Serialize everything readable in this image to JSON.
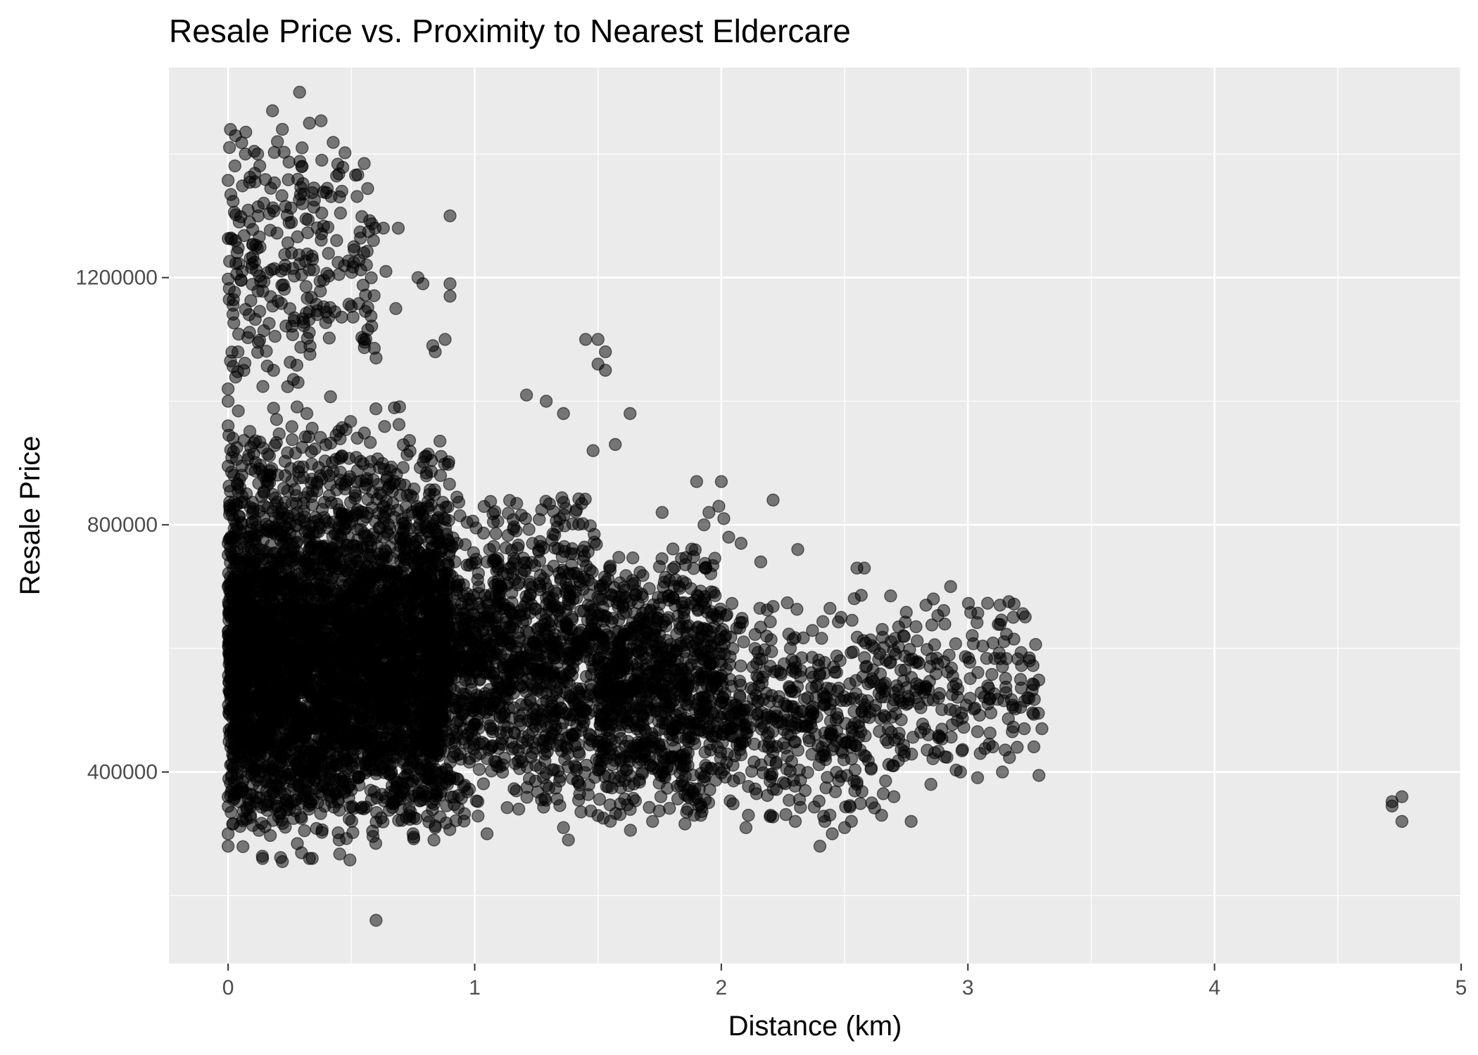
{
  "chart_data": {
    "type": "scatter",
    "title": "Resale Price vs. Proximity to Nearest Eldercare",
    "xlabel": "Distance (km)",
    "ylabel": "Resale Price",
    "xlim": [
      -0.24,
      5.0
    ],
    "ylim": [
      90000,
      1540000
    ],
    "x_ticks": [
      0,
      1,
      2,
      3,
      4,
      5
    ],
    "x_tick_labels": [
      "0",
      "1",
      "2",
      "3",
      "4",
      "5"
    ],
    "x_minor_ticks": [
      0.5,
      1.5,
      2.5,
      3.5,
      4.5
    ],
    "y_ticks": [
      400000,
      800000,
      1200000
    ],
    "y_tick_labels": [
      "400000",
      "800000",
      "1200000"
    ],
    "y_minor_ticks": [
      200000,
      600000,
      1000000,
      1400000
    ],
    "grid": true,
    "legend": "none",
    "colors": {
      "panel_background": "#ebebeb",
      "grid": "#ffffff",
      "point": "#000000",
      "tick_text": "#4d4d4d"
    },
    "point_alpha": 0.5,
    "density_regions": [
      {
        "x": [
          0.0,
          0.9
        ],
        "y": [
          255000,
          1000000
        ],
        "count": 2400
      },
      {
        "x": [
          0.0,
          0.85
        ],
        "y": [
          300000,
          800000
        ],
        "count": 1800
      },
      {
        "x": [
          0.0,
          0.6
        ],
        "y": [
          1000000,
          1480000
        ],
        "count": 260
      },
      {
        "x": [
          0.8,
          1.5
        ],
        "y": [
          300000,
          870000
        ],
        "count": 1300
      },
      {
        "x": [
          1.5,
          2.0
        ],
        "y": [
          300000,
          780000
        ],
        "count": 900
      },
      {
        "x": [
          2.0,
          2.7
        ],
        "y": [
          310000,
          690000
        ],
        "count": 450
      },
      {
        "x": [
          2.7,
          3.3
        ],
        "y": [
          380000,
          690000
        ],
        "count": 200
      }
    ],
    "points": [
      {
        "x": 0.29,
        "y": 1500000
      },
      {
        "x": 0.18,
        "y": 1470000
      },
      {
        "x": 0.22,
        "y": 1440000
      },
      {
        "x": 0.33,
        "y": 1450000
      },
      {
        "x": 0.2,
        "y": 1420000
      },
      {
        "x": 0.3,
        "y": 1410000
      },
      {
        "x": 0.07,
        "y": 1400000
      },
      {
        "x": 0.12,
        "y": 1400000
      },
      {
        "x": 0.38,
        "y": 1390000
      },
      {
        "x": 0.3,
        "y": 1380000
      },
      {
        "x": 0.9,
        "y": 1300000
      },
      {
        "x": 0.63,
        "y": 1280000
      },
      {
        "x": 0.69,
        "y": 1280000
      },
      {
        "x": 0.44,
        "y": 1260000
      },
      {
        "x": 0.51,
        "y": 1250000
      },
      {
        "x": 0.55,
        "y": 1240000
      },
      {
        "x": 0.64,
        "y": 1210000
      },
      {
        "x": 0.77,
        "y": 1200000
      },
      {
        "x": 0.9,
        "y": 1190000
      },
      {
        "x": 0.9,
        "y": 1170000
      },
      {
        "x": 0.68,
        "y": 1150000
      },
      {
        "x": 0.79,
        "y": 1190000
      },
      {
        "x": 0.88,
        "y": 1100000
      },
      {
        "x": 1.45,
        "y": 1100000
      },
      {
        "x": 1.5,
        "y": 1100000
      },
      {
        "x": 1.53,
        "y": 1080000
      },
      {
        "x": 1.5,
        "y": 1060000
      },
      {
        "x": 1.53,
        "y": 1050000
      },
      {
        "x": 0.83,
        "y": 1090000
      },
      {
        "x": 0.84,
        "y": 1080000
      },
      {
        "x": 1.21,
        "y": 1010000
      },
      {
        "x": 1.29,
        "y": 1000000
      },
      {
        "x": 0.6,
        "y": 1070000
      },
      {
        "x": 0.55,
        "y": 1100000
      },
      {
        "x": 0.0,
        "y": 1020000
      },
      {
        "x": 0.0,
        "y": 1000000
      },
      {
        "x": 1.63,
        "y": 980000
      },
      {
        "x": 1.36,
        "y": 980000
      },
      {
        "x": 1.48,
        "y": 920000
      },
      {
        "x": 1.57,
        "y": 930000
      },
      {
        "x": 1.9,
        "y": 870000
      },
      {
        "x": 2.0,
        "y": 870000
      },
      {
        "x": 1.95,
        "y": 820000
      },
      {
        "x": 2.01,
        "y": 810000
      },
      {
        "x": 1.99,
        "y": 830000
      },
      {
        "x": 2.21,
        "y": 840000
      },
      {
        "x": 1.76,
        "y": 820000
      },
      {
        "x": 2.16,
        "y": 740000
      },
      {
        "x": 2.31,
        "y": 760000
      },
      {
        "x": 2.08,
        "y": 770000
      },
      {
        "x": 2.03,
        "y": 780000
      },
      {
        "x": 1.93,
        "y": 800000
      },
      {
        "x": 2.55,
        "y": 730000
      },
      {
        "x": 2.58,
        "y": 730000
      },
      {
        "x": 2.93,
        "y": 700000
      },
      {
        "x": 3.13,
        "y": 670000
      },
      {
        "x": 2.86,
        "y": 680000
      },
      {
        "x": 2.83,
        "y": 670000
      },
      {
        "x": 3.25,
        "y": 580000
      },
      {
        "x": 3.3,
        "y": 470000
      },
      {
        "x": 3.2,
        "y": 440000
      },
      {
        "x": 3.14,
        "y": 400000
      },
      {
        "x": 3.05,
        "y": 430000
      },
      {
        "x": 2.97,
        "y": 400000
      },
      {
        "x": 2.85,
        "y": 380000
      },
      {
        "x": 2.77,
        "y": 320000
      },
      {
        "x": 2.7,
        "y": 360000
      },
      {
        "x": 2.65,
        "y": 330000
      },
      {
        "x": 2.61,
        "y": 350000
      },
      {
        "x": 2.55,
        "y": 380000
      },
      {
        "x": 2.5,
        "y": 310000
      },
      {
        "x": 2.45,
        "y": 300000
      },
      {
        "x": 2.4,
        "y": 280000
      },
      {
        "x": 2.42,
        "y": 320000
      },
      {
        "x": 2.3,
        "y": 320000
      },
      {
        "x": 2.34,
        "y": 370000
      },
      {
        "x": 2.2,
        "y": 330000
      },
      {
        "x": 2.1,
        "y": 310000
      },
      {
        "x": 2.11,
        "y": 330000
      },
      {
        "x": 1.89,
        "y": 330000
      },
      {
        "x": 1.36,
        "y": 310000
      },
      {
        "x": 1.38,
        "y": 290000
      },
      {
        "x": 1.05,
        "y": 300000
      },
      {
        "x": 0.84,
        "y": 310000
      },
      {
        "x": 0.75,
        "y": 300000
      },
      {
        "x": 0.14,
        "y": 260000
      },
      {
        "x": 0.22,
        "y": 255000
      },
      {
        "x": 0.33,
        "y": 260000
      },
      {
        "x": 0.6,
        "y": 160000
      },
      {
        "x": 4.72,
        "y": 345000
      },
      {
        "x": 4.72,
        "y": 352000
      },
      {
        "x": 4.76,
        "y": 360000
      },
      {
        "x": 4.76,
        "y": 320000
      },
      {
        "x": 0.0,
        "y": 280000
      },
      {
        "x": 0.0,
        "y": 300000
      },
      {
        "x": 0.0,
        "y": 360000
      },
      {
        "x": 0.0,
        "y": 770000
      },
      {
        "x": 0.0,
        "y": 700000
      },
      {
        "x": 0.02,
        "y": 940000
      }
    ]
  }
}
